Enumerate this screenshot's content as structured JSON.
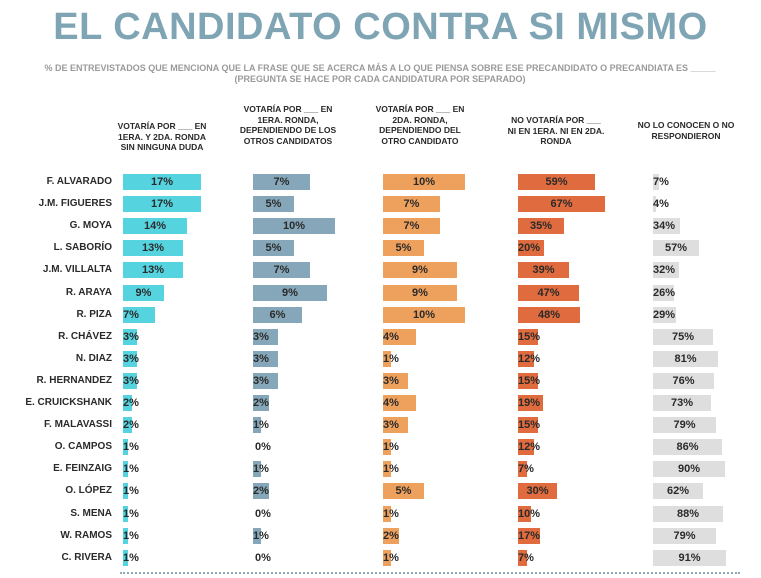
{
  "header": {
    "title": "EL CANDIDATO CONTRA SI MISMO",
    "subtitle": "% DE ENTREVISTADOS QUE MENCIONA QUE LA FRASE QUE SE ACERCA MÁS A LO QUE PIENSA SOBRE ESE PRECANDIDATO O PRECANDIATA ES _____ (PREGUNTA SE HACE POR CADA CANDIDATURA POR SEPARADO)"
  },
  "colors": [
    "#55d4e0",
    "#85a7b9",
    "#eea05d",
    "#df6b3e",
    "#dedede"
  ],
  "chart_data": {
    "type": "bar",
    "title": "EL CANDIDATO CONTRA SI MISMO",
    "categories": [
      "F. ALVARADO",
      "J.M. FIGUERES",
      "G. MOYA",
      "L. SABORÍO",
      "J.M. VILLALTA",
      "R. ARAYA",
      "R. PIZA",
      "R. CHÁVEZ",
      "N. DIAZ",
      "R.  HERNANDEZ",
      "E. CRUICKSHANK",
      "F.  MALAVASSI",
      "O. CAMPOS",
      "E. FEINZAIG",
      "O. LÓPEZ",
      "S. MENA",
      "W. RAMOS",
      "C. RIVERA"
    ],
    "series": [
      {
        "name": "VOTARÍA POR ___ EN 1ERA. Y 2DA. RONDA SIN NINGUNA DUDA",
        "values": [
          17,
          17,
          14,
          13,
          13,
          9,
          7,
          3,
          3,
          3,
          2,
          2,
          1,
          1,
          1,
          1,
          1,
          1
        ]
      },
      {
        "name": "VOTARÍA POR ___ EN 1ERA. RONDA, DEPENDIENDO DE LOS OTROS CANDIDATOS",
        "values": [
          7,
          5,
          10,
          5,
          7,
          9,
          6,
          3,
          3,
          3,
          2,
          1,
          0,
          1,
          2,
          0,
          1,
          0
        ]
      },
      {
        "name": "VOTARÍA POR ___ EN 2DA. RONDA, DEPENDIENDO DEL OTRO CANDIDATO",
        "values": [
          10,
          7,
          7,
          5,
          9,
          9,
          10,
          4,
          1,
          3,
          4,
          3,
          1,
          1,
          5,
          1,
          2,
          1
        ]
      },
      {
        "name": "NO VOTARÍA POR ___ NI EN 1ERA. NI EN 2DA. RONDA",
        "values": [
          59,
          67,
          35,
          20,
          39,
          47,
          48,
          15,
          12,
          15,
          19,
          15,
          12,
          7,
          30,
          10,
          17,
          7
        ]
      },
      {
        "name": "NO LO CONOCEN O NO RESPONDIERON",
        "values": [
          7,
          4,
          34,
          57,
          32,
          26,
          29,
          75,
          81,
          76,
          73,
          79,
          86,
          90,
          62,
          88,
          79,
          91
        ]
      }
    ]
  }
}
